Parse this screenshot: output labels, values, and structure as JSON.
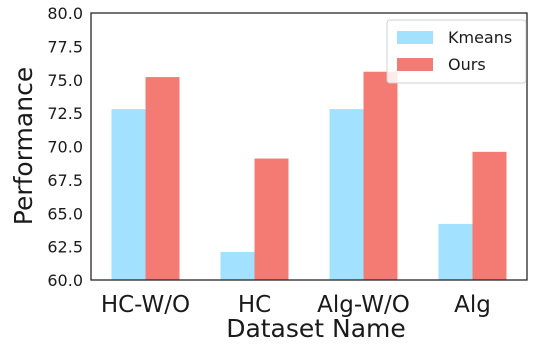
{
  "chart_data": {
    "type": "bar",
    "title": "",
    "xlabel": "Dataset Name",
    "ylabel": "Performance",
    "categories": [
      "HC-W/O",
      "HC",
      "Alg-W/O",
      "Alg"
    ],
    "series": [
      {
        "name": "Kmeans",
        "color": "#a2e1ff",
        "values": [
          72.8,
          62.1,
          72.8,
          64.2
        ]
      },
      {
        "name": "Ours",
        "color": "#f47b73",
        "values": [
          75.2,
          69.1,
          75.6,
          69.6
        ]
      }
    ],
    "ylim": [
      60.0,
      80.0
    ],
    "yticks": [
      "60.0",
      "62.5",
      "65.0",
      "67.5",
      "70.0",
      "72.5",
      "75.0",
      "77.5",
      "80.0"
    ],
    "grid": false,
    "legend_position": "top-right"
  }
}
